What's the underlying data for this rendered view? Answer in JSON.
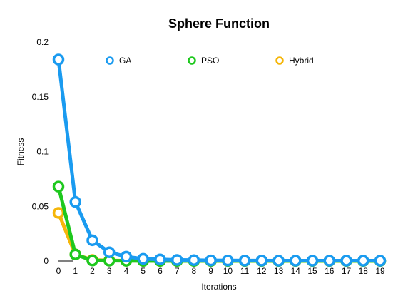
{
  "chart_data": {
    "type": "line",
    "title": "Sphere Function",
    "xlabel": "Iterations",
    "ylabel": "Fitness",
    "x": [
      0,
      1,
      2,
      3,
      4,
      5,
      6,
      7,
      8,
      9,
      10,
      11,
      12,
      13,
      14,
      15,
      16,
      17,
      18,
      19
    ],
    "x_tick_labels": [
      "0",
      "1",
      "2",
      "3",
      "4",
      "5",
      "6",
      "7",
      "8",
      "9",
      "10",
      "11",
      "12",
      "13",
      "14",
      "15",
      "16",
      "17",
      "18",
      "19"
    ],
    "ylim": [
      0,
      0.2
    ],
    "y_ticks": [
      0,
      0.05,
      0.1,
      0.15,
      0.2
    ],
    "y_tick_labels": [
      "0",
      "0.05",
      "0.1",
      "0.15",
      "0.2"
    ],
    "grid": false,
    "legend_position": "top",
    "series": [
      {
        "name": "Hybrid",
        "color": "#f5b60a",
        "values": [
          0.044,
          0.006,
          0.001,
          0.0005,
          0.0003,
          0.0002,
          0.0001,
          0.0001,
          0.0001,
          0.0001,
          0.0001,
          0.0001,
          0.0001,
          0.0001,
          0.0001,
          0.0001,
          0.0001,
          0.0001,
          0.0001,
          0.0001
        ]
      },
      {
        "name": "PSO",
        "color": "#1ec81e",
        "values": [
          0.068,
          0.006,
          0.0005,
          0.0003,
          0.0002,
          0.0001,
          0.0001,
          0.0001,
          0.0001,
          0.0001,
          0.0001,
          0.0001,
          0.0001,
          0.0001,
          0.0001,
          0.0001,
          0.0001,
          0.0001,
          0.0001,
          0.0001
        ]
      },
      {
        "name": "GA",
        "color": "#1a9bf0",
        "values": [
          0.184,
          0.054,
          0.019,
          0.008,
          0.004,
          0.002,
          0.0015,
          0.001,
          0.0008,
          0.0006,
          0.0005,
          0.0004,
          0.0004,
          0.0003,
          0.0003,
          0.0003,
          0.0003,
          0.0003,
          0.0003,
          0.0003
        ]
      }
    ],
    "legend_order": [
      "GA",
      "PSO",
      "Hybrid"
    ]
  }
}
